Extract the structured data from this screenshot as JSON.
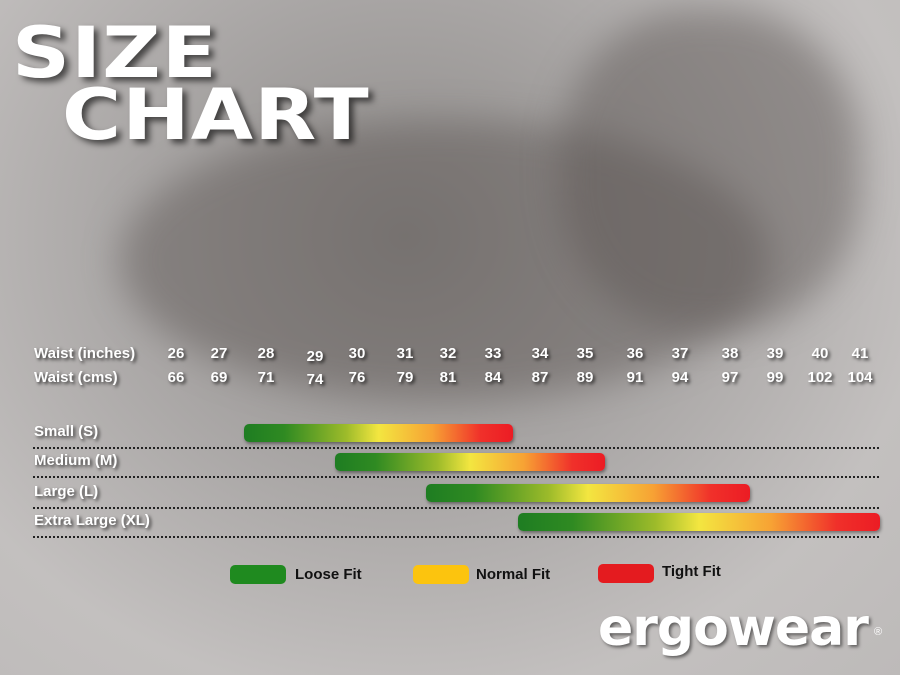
{
  "title": {
    "line1": "SIZE",
    "line2": "CHART"
  },
  "chart_data": {
    "type": "bar",
    "orientation": "horizontal-range",
    "row_labels": [
      "Waist (inches)",
      "Waist (cms)"
    ],
    "waist_inches": [
      "26",
      "27",
      "28",
      "29",
      "30",
      "31",
      "32",
      "33",
      "34",
      "35",
      "36",
      "37",
      "38",
      "39",
      "40",
      "41"
    ],
    "waist_cms": [
      "66",
      "69",
      "71",
      "74",
      "76",
      "79",
      "81",
      "84",
      "87",
      "89",
      "91",
      "94",
      "97",
      "99",
      "102",
      "104"
    ],
    "sizes": [
      {
        "name": "Small (S)",
        "from_inches": 28,
        "to_inches": 33
      },
      {
        "name": "Medium (M)",
        "from_inches": 30,
        "to_inches": 35
      },
      {
        "name": "Large (L)",
        "from_inches": 32,
        "to_inches": 38
      },
      {
        "name": "Extra Large (XL)",
        "from_inches": 34,
        "to_inches": 41
      }
    ],
    "gradient": "loose to tight, left to right",
    "legend": [
      {
        "label": "Loose Fit",
        "color": "#1f8a1f"
      },
      {
        "label": "Normal Fit",
        "color": "#fcc40e"
      },
      {
        "label": "Tight Fit",
        "color": "#e41b1f"
      }
    ],
    "legend_placement": "bottom"
  },
  "brand": {
    "logo": "ergowear",
    "registered": "®"
  }
}
